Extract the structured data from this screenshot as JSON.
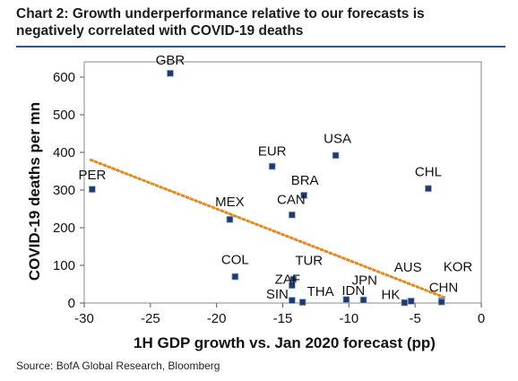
{
  "header": {
    "title_line1": "Chart 2: Growth underperformance relative to our forecasts is",
    "title_line2": "negatively correlated with COVID-19 deaths"
  },
  "footer": {
    "source": "Source: BofA Global Research, Bloomberg"
  },
  "chart_data": {
    "type": "scatter",
    "title": "Chart 2: Growth underperformance relative to our forecasts is negatively correlated with COVID-19 deaths",
    "xlabel": "1H GDP growth vs. Jan 2020 forecast (pp)",
    "ylabel": "COVID-19 deaths per mn",
    "xlim": [
      -30,
      0
    ],
    "ylim": [
      0,
      650
    ],
    "xticks": [
      -30,
      -25,
      -20,
      -15,
      -10,
      -5,
      0
    ],
    "yticks": [
      0,
      100,
      200,
      300,
      400,
      500,
      600
    ],
    "grid": false,
    "marker_color": "#1f3b6e",
    "trendline": {
      "color": "#e8891c",
      "style": "dotted",
      "x": [
        -29.5,
        -2.8
      ],
      "y": [
        380,
        15
      ]
    },
    "points": [
      {
        "label": "GBR",
        "x": -23.5,
        "y": 610
      },
      {
        "label": "PER",
        "x": -29.4,
        "y": 302
      },
      {
        "label": "EUR",
        "x": -15.8,
        "y": 363
      },
      {
        "label": "USA",
        "x": -11.0,
        "y": 392
      },
      {
        "label": "BRA",
        "x": -13.4,
        "y": 286
      },
      {
        "label": "CAN",
        "x": -14.3,
        "y": 234
      },
      {
        "label": "MEX",
        "x": -19.0,
        "y": 222
      },
      {
        "label": "CHL",
        "x": -4.0,
        "y": 304
      },
      {
        "label": "COL",
        "x": -18.6,
        "y": 70
      },
      {
        "label": "TUR",
        "x": -14.2,
        "y": 63
      },
      {
        "label": "ZAF",
        "x": -14.3,
        "y": 47
      },
      {
        "label": "SIN",
        "x": -14.3,
        "y": 7
      },
      {
        "label": "THA",
        "x": -13.5,
        "y": 2
      },
      {
        "label": "IDN",
        "x": -10.2,
        "y": 9
      },
      {
        "label": "JPN",
        "x": -8.9,
        "y": 8
      },
      {
        "label": "HK",
        "x": -5.8,
        "y": 1
      },
      {
        "label": "AUS",
        "x": -5.3,
        "y": 5
      },
      {
        "label": "KOR",
        "x": -3.0,
        "y": 6
      },
      {
        "label": "CHN",
        "x": -3.0,
        "y": 3
      }
    ]
  }
}
